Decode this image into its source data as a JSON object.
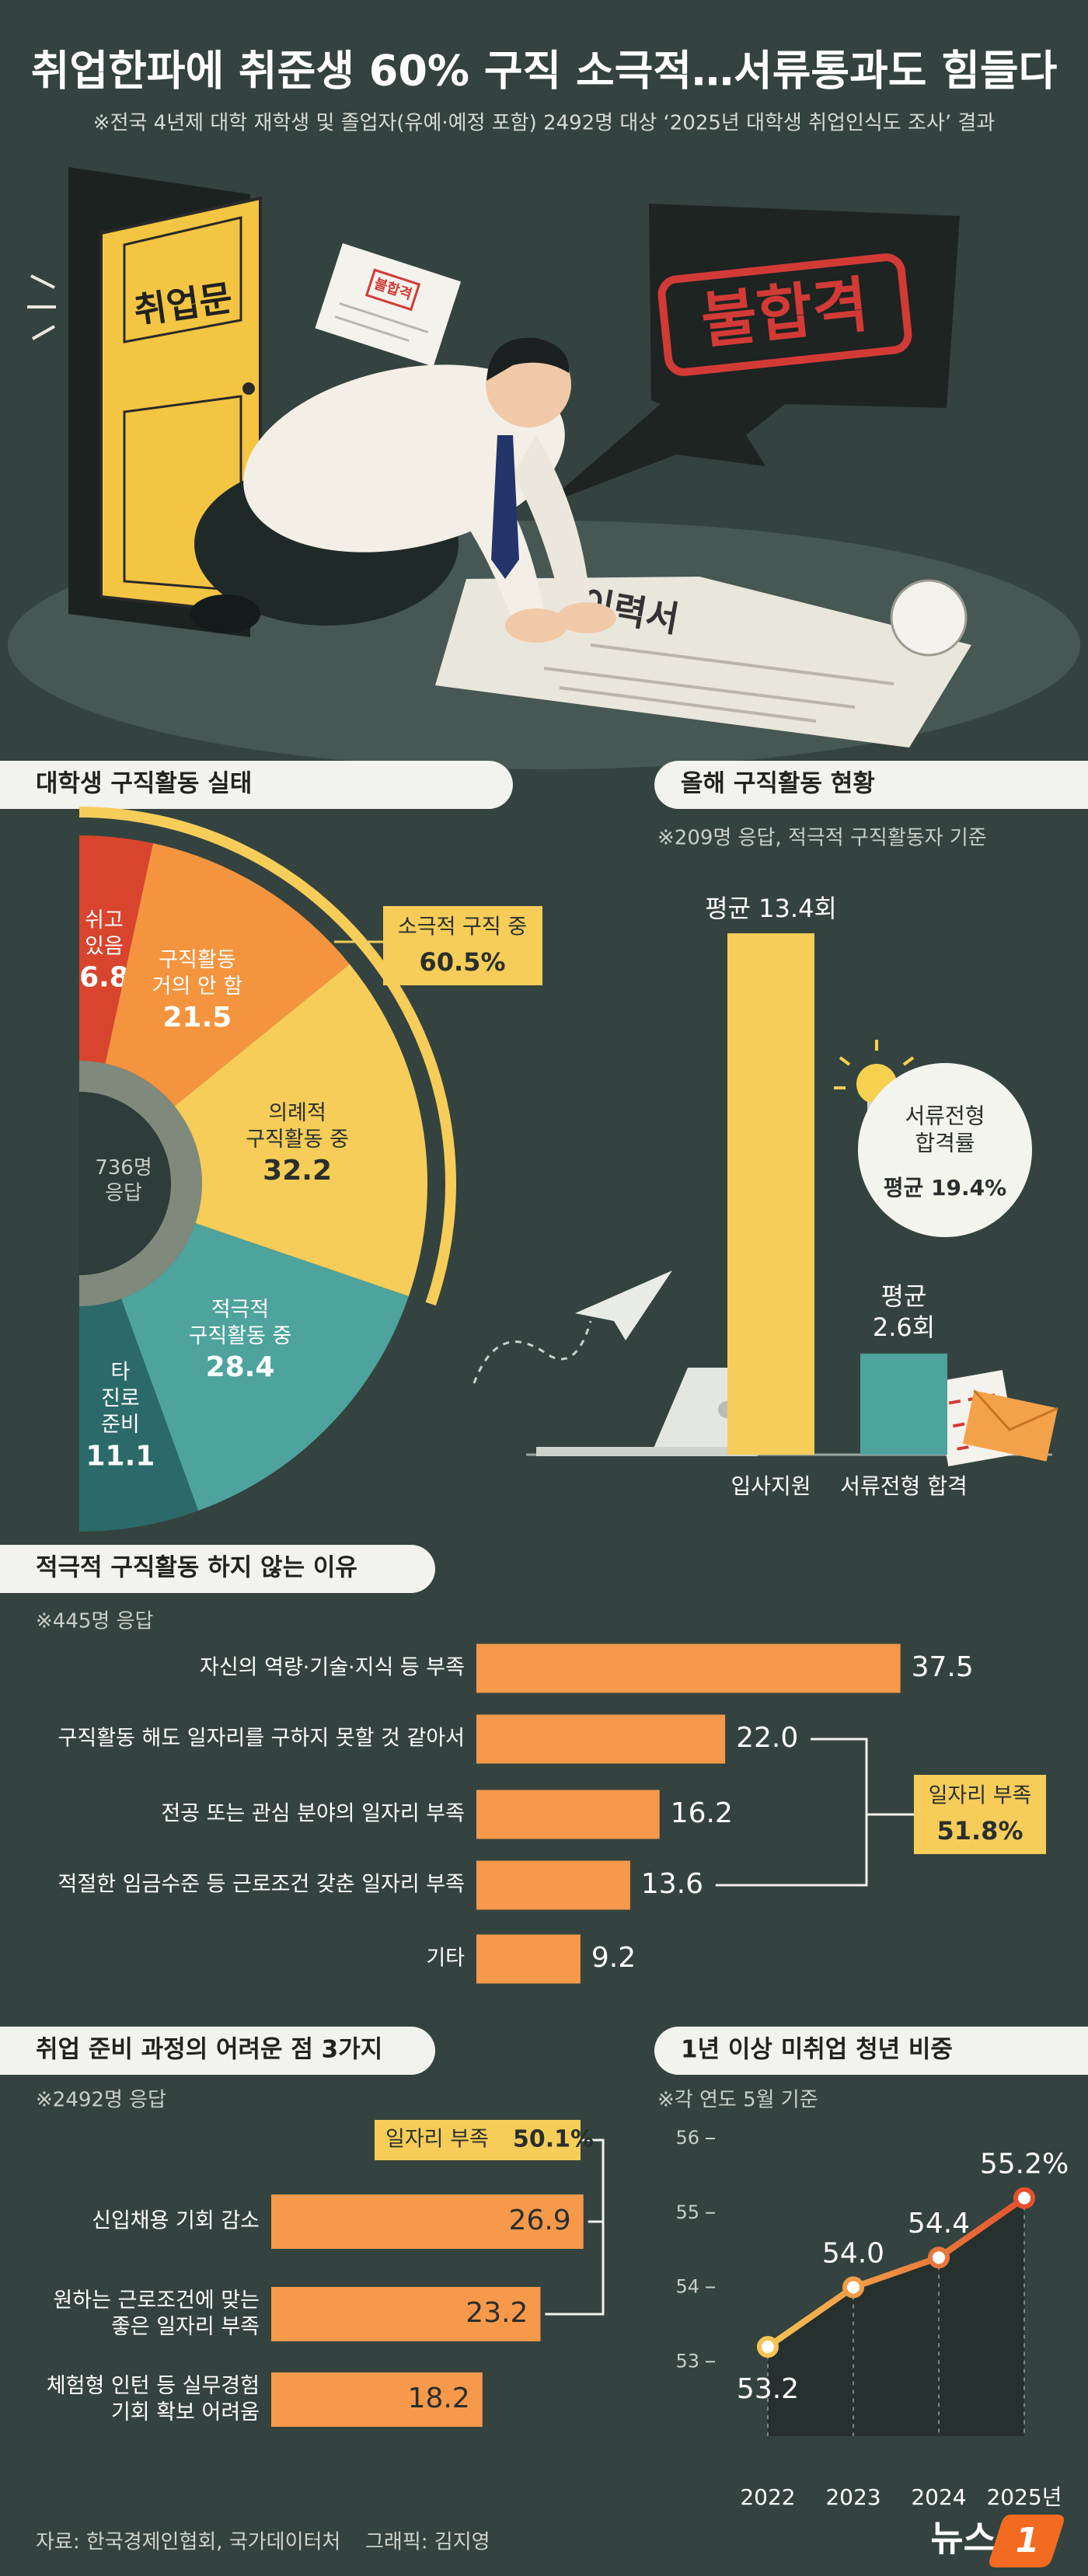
{
  "title": "취업한파에 취준생 60% 구직 소극적…서류통과도 힘들다",
  "subtitle": "※전국 4년제 대학 재학생 및 졸업자(유예·예정 포함) 2492명 대상 ‘2025년 대학생 취업인식도 조사’ 결과",
  "illustration": {
    "door": "취업문",
    "stamp": "불합격",
    "paper_stamp": "불합격",
    "resume": "이력서"
  },
  "chart_data": [
    {
      "type": "half-donut",
      "title": "대학생 구직활동 실태",
      "center_label": "736명\n응답",
      "categories": [
        "쉬고\n있음",
        "구직활동\n거의 안 함",
        "의례적\n구직활동 중",
        "적극적\n구직활동 중",
        "타\n진로\n준비"
      ],
      "values": [
        6.8,
        21.5,
        32.2,
        28.4,
        11.1
      ],
      "colors": [
        "#d8442d",
        "#f5943f",
        "#f6cd59",
        "#4ea39d",
        "#2b6a69"
      ],
      "bracket": {
        "label": "소극적 구직 중",
        "text": "60.5%"
      }
    },
    {
      "type": "bar",
      "title": "올해 구직활동 현황",
      "subtitle": "※209명 응답, 적극적 구직활동자 기준",
      "categories": [
        "입사지원",
        "서류전형 합격"
      ],
      "values": [
        13.4,
        2.6
      ],
      "value_labels": [
        "평균 13.4회",
        "평균\n2.6회"
      ],
      "colors": [
        "#f6cd59",
        "#4ea39d"
      ],
      "ylim": [
        0,
        14
      ],
      "callout": {
        "label": "서류전형\n합격률",
        "text": "평균 19.4%"
      }
    },
    {
      "type": "hbar",
      "title": "적극적 구직활동 하지 않는 이유",
      "subtitle": "※445명 응답",
      "categories": [
        "자신의 역량·기술·지식 등 부족",
        "구직활동 해도 일자리를 구하지 못할 것 같아서",
        "전공 또는 관심 분야의 일자리 부족",
        "적절한 임금수준 등 근로조건 갖춘 일자리 부족",
        "기타"
      ],
      "values": [
        37.5,
        22.0,
        16.2,
        13.6,
        9.2
      ],
      "value_labels": [
        "37.5",
        "22.0",
        "16.2",
        "13.6",
        "9.2"
      ],
      "color": "#f6994a",
      "xlim": [
        0,
        40
      ],
      "bracket": {
        "label": "일자리 부족",
        "text": "51.8%"
      }
    },
    {
      "type": "hbar",
      "title": "취업 준비 과정의 어려운 점 3가지",
      "subtitle": "※2492명 응답",
      "categories": [
        "신입채용 기회 감소",
        "원하는 근로조건에 맞는\n좋은 일자리 부족",
        "체험형 인턴 등 실무경험\n기회 확보 어려움"
      ],
      "values": [
        26.9,
        23.2,
        18.2
      ],
      "color": "#f6994a",
      "xlim": [
        0,
        30
      ],
      "bracket": {
        "label": "일자리 부족",
        "text": "50.1%"
      }
    },
    {
      "type": "line",
      "title": "1년 이상 미취업 청년 비중",
      "subtitle": "※각 연도 5월 기준",
      "categories": [
        "2022",
        "2023",
        "2024",
        "2025년"
      ],
      "values": [
        53.2,
        54.0,
        54.4,
        55.2
      ],
      "value_labels": [
        "53.2",
        "54.0",
        "54.4",
        "55.2%"
      ],
      "ylim": [
        52,
        56
      ],
      "yticks": [
        53,
        54,
        55,
        56
      ],
      "colors": [
        "#f6c453",
        "#e4512f"
      ]
    }
  ],
  "footer": {
    "source": "자료: 한국경제인협회, 국가데이터처",
    "credit": "그래픽: 김지영",
    "logo": "뉴스",
    "logo_badge": "1"
  }
}
